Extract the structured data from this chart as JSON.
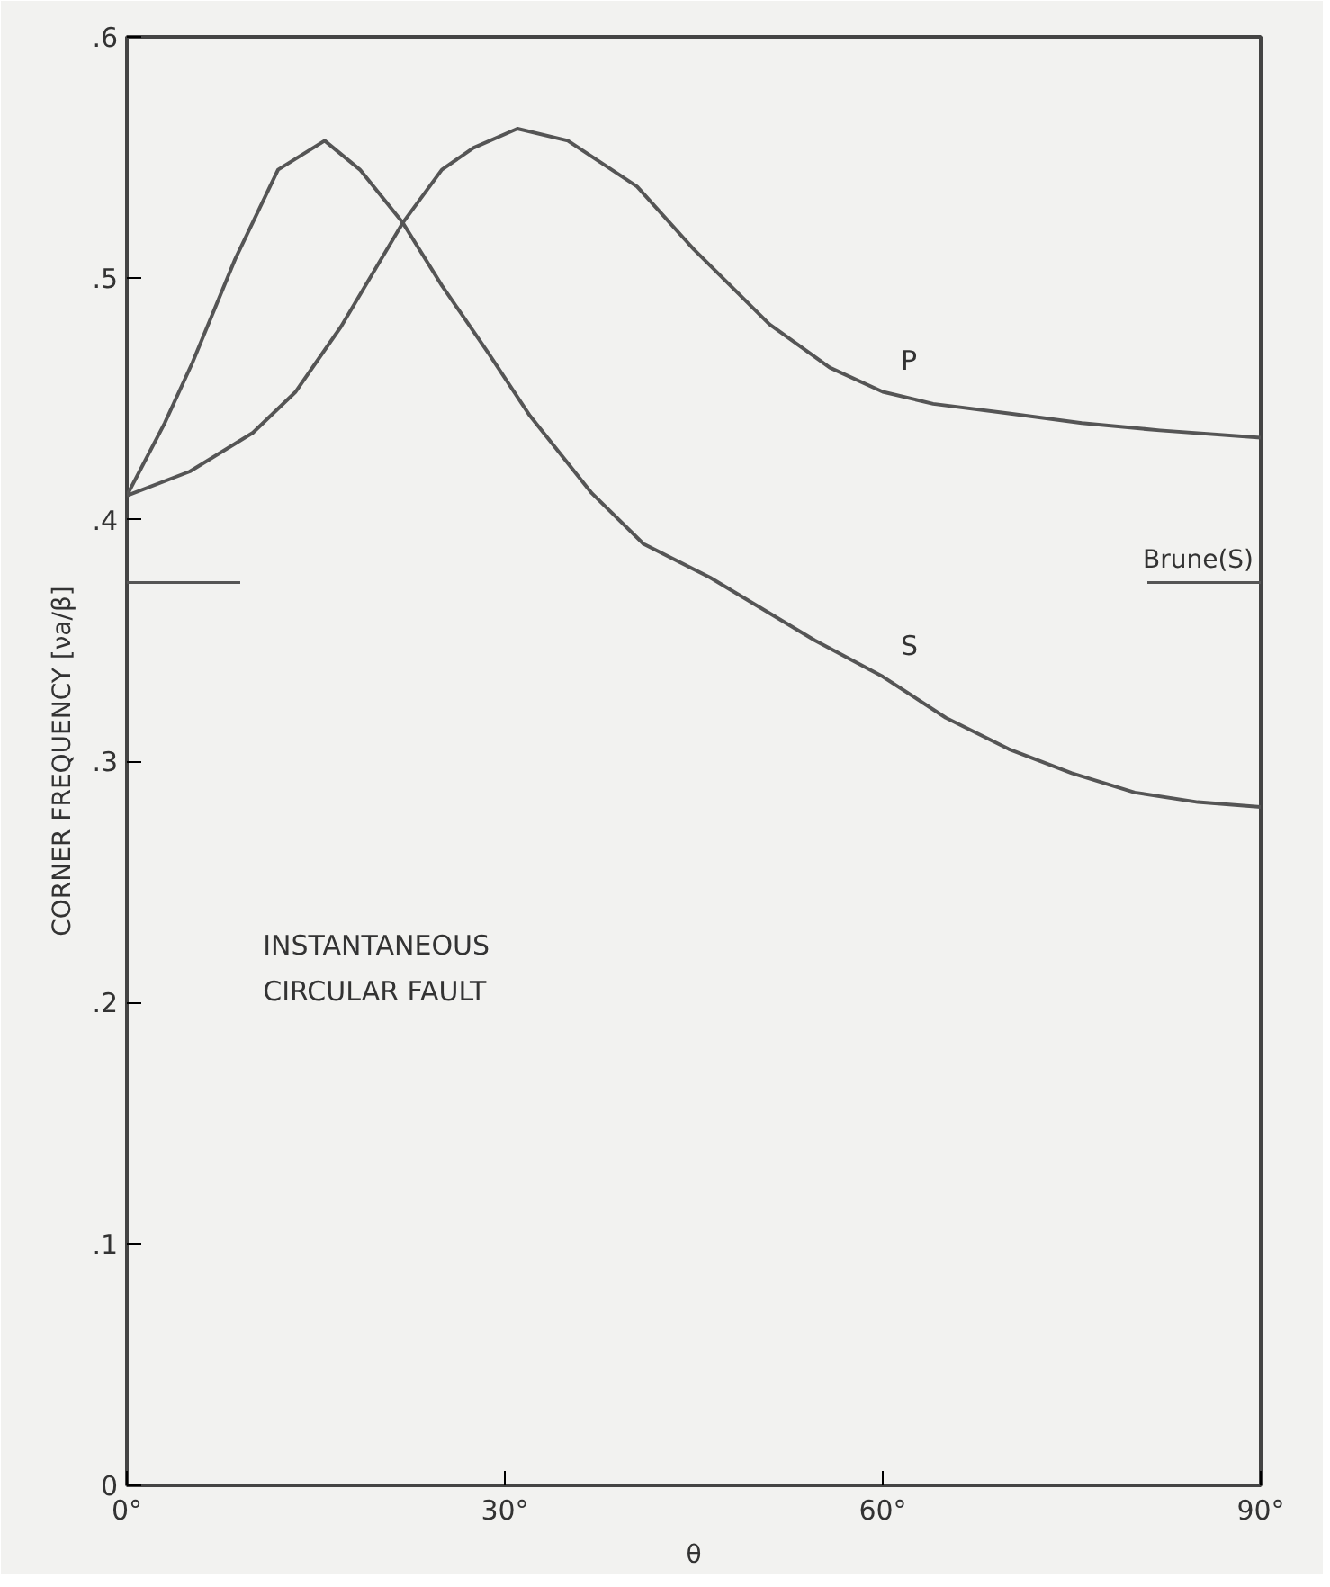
{
  "chart_data": {
    "type": "line",
    "xlabel": "θ",
    "ylabel": "CORNER FREQUENCY [νa/β]",
    "xlim": [
      0,
      90
    ],
    "ylim": [
      0,
      0.6
    ],
    "xticks": [
      {
        "value": 0,
        "label": "0°"
      },
      {
        "value": 30,
        "label": "30°"
      },
      {
        "value": 60,
        "label": "60°"
      },
      {
        "value": 90,
        "label": "90°"
      }
    ],
    "yticks": [
      {
        "value": 0,
        "label": "0"
      },
      {
        "value": 0.1,
        "label": ".1"
      },
      {
        "value": 0.2,
        "label": ".2"
      },
      {
        "value": 0.3,
        "label": ".3"
      },
      {
        "value": 0.4,
        "label": ".4"
      },
      {
        "value": 0.5,
        "label": ".5"
      },
      {
        "value": 0.6,
        "label": ".6"
      }
    ],
    "grid": false,
    "marker": "none",
    "line_style": "solid",
    "series": [
      {
        "name": "P",
        "color": "#555555",
        "x": [
          0,
          5,
          10,
          13.4,
          17,
          21.9,
          25,
          27.5,
          31,
          35,
          40.5,
          45,
          51,
          55.8,
          60,
          64,
          70,
          75.8,
          82,
          90
        ],
        "values": [
          0.41,
          0.42,
          0.436,
          0.453,
          0.48,
          0.523,
          0.545,
          0.554,
          0.562,
          0.557,
          0.538,
          0.512,
          0.481,
          0.463,
          0.453,
          0.448,
          0.444,
          0.44,
          0.437,
          0.434
        ]
      },
      {
        "name": "S",
        "color": "#555555",
        "x": [
          0,
          3,
          5.2,
          8.6,
          12,
          15.7,
          18.5,
          21.9,
          25,
          28.7,
          32,
          36.9,
          41,
          46.3,
          54.6,
          60,
          65,
          70,
          75,
          80,
          85,
          90
        ],
        "values": [
          0.41,
          0.44,
          0.465,
          0.508,
          0.545,
          0.557,
          0.545,
          0.523,
          0.497,
          0.469,
          0.443,
          0.411,
          0.39,
          0.376,
          0.35,
          0.335,
          0.318,
          0.305,
          0.295,
          0.287,
          0.283,
          0.281
        ]
      }
    ],
    "ref_lines": [
      {
        "axis": "y",
        "value": 0.374,
        "label": "Brune(S)",
        "color": "#555555"
      }
    ],
    "annotations": [
      "INSTANTANEOUS\nCIRCULAR FAULT"
    ]
  }
}
